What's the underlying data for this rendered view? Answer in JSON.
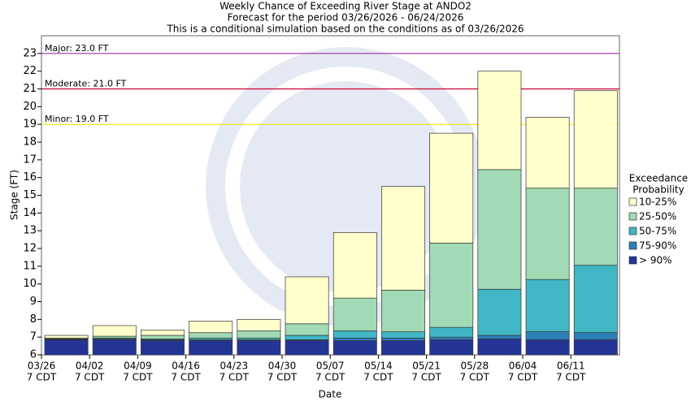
{
  "chart_data": {
    "type": "bar",
    "title": [
      "Weekly Chance of Exceeding River Stage at ANDO2",
      "Forecast for the period 03/26/2026 - 06/24/2026",
      "This is a conditional simulation based on the conditions as of 03/26/2026"
    ],
    "x_label": "Date",
    "y_label": "Stage (FT)",
    "categories": [
      "03/26",
      "04/02",
      "04/09",
      "04/16",
      "04/23",
      "04/30",
      "05/07",
      "05/14",
      "05/21",
      "05/28",
      "06/04",
      "06/11"
    ],
    "time_label": "7 CDT",
    "legend_title": [
      "Exceedance",
      "Probability"
    ],
    "series": [
      {
        "name": "> 90%",
        "color": "#253494",
        "values": [
          6.85,
          6.85,
          6.8,
          6.8,
          6.8,
          6.8,
          6.8,
          6.8,
          6.85,
          6.9,
          6.85,
          6.85
        ]
      },
      {
        "name": "75-90%",
        "color": "#2c7fb8",
        "values": [
          6.88,
          6.9,
          6.85,
          6.85,
          6.85,
          6.85,
          6.95,
          6.95,
          7.0,
          7.1,
          7.3,
          7.25
        ]
      },
      {
        "name": "50-75%",
        "color": "#41b6c4",
        "values": [
          6.9,
          6.95,
          6.9,
          6.95,
          6.95,
          7.1,
          7.35,
          7.3,
          7.55,
          9.7,
          10.25,
          11.05
        ]
      },
      {
        "name": "25-50%",
        "color": "#a1dab4",
        "values": [
          6.95,
          7.05,
          7.1,
          7.25,
          7.35,
          7.75,
          9.2,
          9.65,
          12.3,
          16.45,
          15.4,
          15.4
        ]
      },
      {
        "name": "10-25%",
        "color": "#ffffcc",
        "values": [
          7.1,
          7.65,
          7.4,
          7.9,
          8.0,
          10.4,
          12.9,
          15.5,
          18.5,
          22.0,
          19.4,
          20.9
        ]
      }
    ],
    "thresholds": [
      {
        "label": "Major: 23.0 FT",
        "value": 23,
        "color": "#993399"
      },
      {
        "label": "Moderate: 21.0 FT",
        "value": 21,
        "color": "#cc0033"
      },
      {
        "label": "Minor: 19.0 FT",
        "value": 19,
        "color": "#e6e600"
      }
    ],
    "ylim": [
      6,
      24
    ],
    "yticks": [
      6,
      7,
      8,
      9,
      10,
      11,
      12,
      13,
      14,
      15,
      16,
      17,
      18,
      19,
      20,
      21,
      22,
      23
    ]
  }
}
